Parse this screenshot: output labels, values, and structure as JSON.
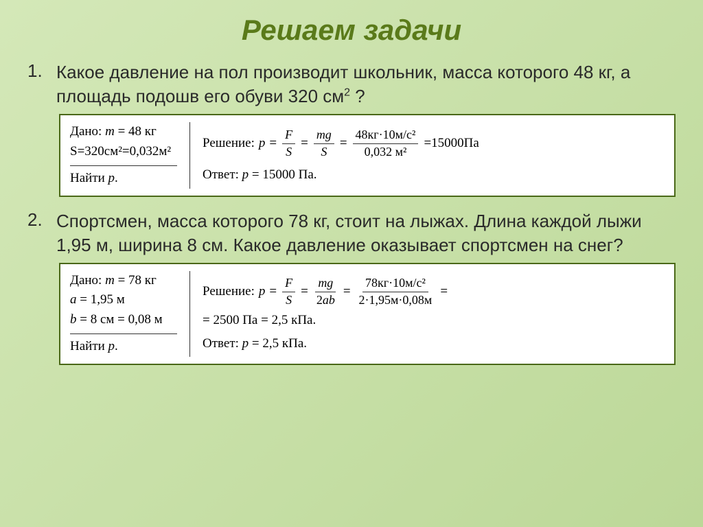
{
  "title": "Решаем задачи",
  "problems": [
    {
      "num": "1.",
      "text_parts": [
        "Какое давление на пол  производит  школьник, масса которого 48 кг, а площадь подошв его обуви 320 см",
        "2",
        " ?"
      ],
      "given": {
        "line1": "Дано: m = 48 кг",
        "line2": "S=320см²=0,032м²",
        "find": "Найти p."
      },
      "solution": {
        "label": "Решение:",
        "p": "p =",
        "frac1_top": "F",
        "frac1_bot": "S",
        "frac2_top": "mg",
        "frac2_bot": "S",
        "frac3_top": "48кг·10м/с²",
        "frac3_bot": "0,032 м²",
        "result": "=15000Па",
        "answer": "Ответ: p = 15000 Па."
      }
    },
    {
      "num": "2.",
      "text_parts": [
        "Спортсмен, масса которого 78 кг, стоит на лыжах. Длина каждой лыжи 1,95 м, ширина 8 см. Какое давление оказывает  спортсмен на снег?"
      ],
      "given": {
        "line1": "Дано: m = 78 кг",
        "line2": "a = 1,95 м",
        "line3": "b = 8 см = 0,08 м",
        "find": "Найти p."
      },
      "solution": {
        "label": "Решение:",
        "p": "p =",
        "frac1_top": "F",
        "frac1_bot": "S",
        "frac2_top": "mg",
        "frac2_bot": "2ab",
        "frac3_top": "78кг·10м/с²",
        "frac3_bot": "2·1,95м·0,08м",
        "tail": "=",
        "result2": "= 2500 Па = 2,5 кПа.",
        "answer": "Ответ: p = 2,5 кПа."
      }
    }
  ]
}
